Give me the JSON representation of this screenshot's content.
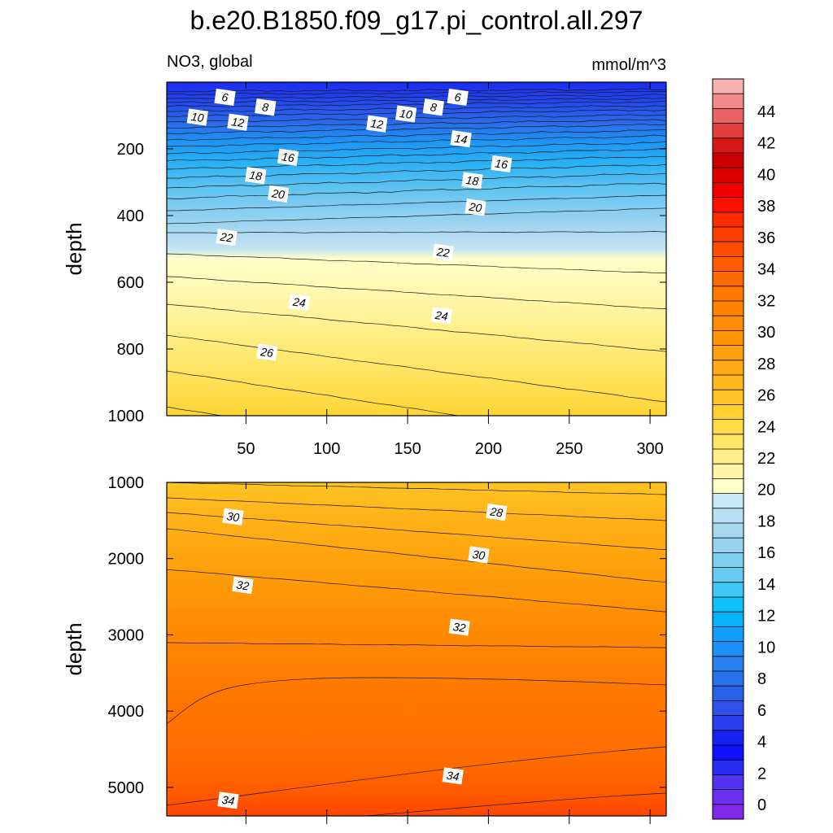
{
  "title": "b.e20.B1850.f09_g17.pi_control.all.297",
  "subtitle_left": "NO3, global",
  "subtitle_right": "mmol/m^3",
  "chart_data": [
    {
      "type": "contour",
      "panel": "upper",
      "variable": "NO3",
      "units": "mmol/m^3",
      "xlabel": "",
      "ylabel": "depth",
      "xlim": [
        1,
        310
      ],
      "ylim": [
        1000,
        0
      ],
      "x_ticks": [
        50,
        100,
        150,
        200,
        250,
        300
      ],
      "y_ticks": [
        200,
        400,
        600,
        800,
        1000
      ],
      "contour_interval": 1,
      "contour_labels": [
        {
          "value": 6,
          "x": 37,
          "y": 45
        },
        {
          "value": 8,
          "x": 62,
          "y": 75
        },
        {
          "value": 10,
          "x": 20,
          "y": 105
        },
        {
          "value": 12,
          "x": 45,
          "y": 120
        },
        {
          "value": 16,
          "x": 76,
          "y": 225
        },
        {
          "value": 18,
          "x": 56,
          "y": 280
        },
        {
          "value": 20,
          "x": 70,
          "y": 335
        },
        {
          "value": 22,
          "x": 38,
          "y": 465
        },
        {
          "value": 24,
          "x": 83,
          "y": 660
        },
        {
          "value": 26,
          "x": 63,
          "y": 810
        },
        {
          "value": 12,
          "x": 131,
          "y": 125
        },
        {
          "value": 10,
          "x": 149,
          "y": 95
        },
        {
          "value": 8,
          "x": 166,
          "y": 75
        },
        {
          "value": 6,
          "x": 181,
          "y": 45
        },
        {
          "value": 14,
          "x": 183,
          "y": 170
        },
        {
          "value": 16,
          "x": 208,
          "y": 245
        },
        {
          "value": 18,
          "x": 190,
          "y": 295
        },
        {
          "value": 20,
          "x": 192,
          "y": 375
        },
        {
          "value": 22,
          "x": 172,
          "y": 510
        },
        {
          "value": 24,
          "x": 171,
          "y": 700
        }
      ]
    },
    {
      "type": "contour",
      "panel": "lower",
      "variable": "NO3",
      "units": "mmol/m^3",
      "xlabel": "",
      "ylabel": "depth",
      "xlim": [
        1,
        310
      ],
      "ylim": [
        5375,
        1000
      ],
      "x_ticks": [
        50,
        100,
        150,
        200,
        250,
        300
      ],
      "y_ticks": [
        1000,
        2000,
        3000,
        4000,
        5000
      ],
      "contour_interval": 1,
      "contour_labels": [
        {
          "value": 30,
          "x": 42,
          "y": 1450
        },
        {
          "value": 28,
          "x": 205,
          "y": 1390
        },
        {
          "value": 30,
          "x": 194,
          "y": 1950
        },
        {
          "value": 32,
          "x": 48,
          "y": 2350
        },
        {
          "value": 32,
          "x": 182,
          "y": 2900
        },
        {
          "value": 34,
          "x": 178,
          "y": 4850
        },
        {
          "value": 34,
          "x": 39,
          "y": 5170
        }
      ]
    }
  ],
  "colorbar": {
    "labels": [
      0,
      2,
      4,
      6,
      8,
      10,
      12,
      14,
      16,
      18,
      20,
      22,
      24,
      26,
      28,
      30,
      32,
      34,
      36,
      38,
      40,
      42,
      44
    ],
    "colors": [
      "#7f28e8",
      "#6b2ff0",
      "#5234f0",
      "#2a2ef4",
      "#1010ff",
      "#1522f0",
      "#2a3ef0",
      "#3050e8",
      "#2862e6",
      "#2a72ea",
      "#2a80ee",
      "#1e90f8",
      "#10a0fa",
      "#08b2f8",
      "#10c0f8",
      "#40c8f4",
      "#68caf0",
      "#80cef0",
      "#98d2ee",
      "#a8d8f0",
      "#b8e0f4",
      "#c8e8f4",
      "#ffffc8",
      "#fff4a8",
      "#ffee88",
      "#ffe468",
      "#ffdc48",
      "#ffd030",
      "#ffc424",
      "#ffb81c",
      "#ffaa14",
      "#ffa00c",
      "#ff9406",
      "#ff8c04",
      "#ff8200",
      "#ff7800",
      "#ff6a00",
      "#ff5c00",
      "#ff4e00",
      "#ff3e00",
      "#ff2a00",
      "#ff1000",
      "#ee0000",
      "#dd0000",
      "#cc0000",
      "#d81818",
      "#e04040",
      "#ea6464",
      "#f28a8a",
      "#f8b0b0"
    ]
  }
}
